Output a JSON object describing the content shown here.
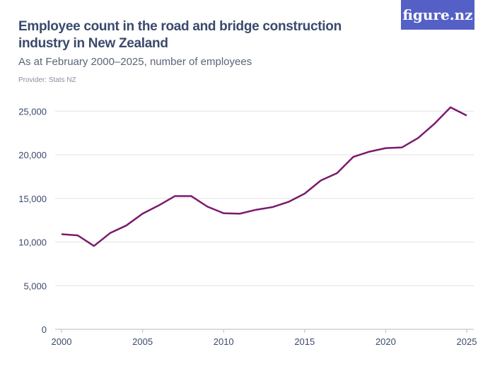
{
  "header": {
    "title": "Employee count in the road and bridge construction industry in New Zealand",
    "subtitle": "As at February 2000–2025, number of employees",
    "provider": "Provider: Stats NZ",
    "logo": "figure.nz"
  },
  "chart_data": {
    "type": "line",
    "title": "Employee count in the road and bridge construction industry in New Zealand",
    "subtitle": "As at February 2000–2025, number of employees",
    "xlabel": "",
    "ylabel": "",
    "xlim": [
      2000,
      2025
    ],
    "ylim": [
      0,
      25000
    ],
    "grid": true,
    "x_ticks": [
      2000,
      2005,
      2010,
      2015,
      2020,
      2025
    ],
    "y_ticks": [
      0,
      5000,
      10000,
      15000,
      20000,
      25000
    ],
    "y_tick_labels": [
      "0",
      "5,000",
      "10,000",
      "15,000",
      "20,000",
      "25,000"
    ],
    "line_color": "#7b1a6e",
    "x": [
      2000,
      2001,
      2002,
      2003,
      2004,
      2005,
      2006,
      2007,
      2008,
      2009,
      2010,
      2011,
      2012,
      2013,
      2014,
      2015,
      2016,
      2017,
      2018,
      2019,
      2020,
      2021,
      2022,
      2023,
      2024,
      2025
    ],
    "values": [
      10900,
      10760,
      9550,
      11030,
      11900,
      13250,
      14200,
      15270,
      15270,
      14060,
      13300,
      13250,
      13700,
      14000,
      14600,
      15550,
      17060,
      17900,
      19760,
      20360,
      20760,
      20840,
      21920,
      23540,
      25440,
      24500
    ]
  }
}
